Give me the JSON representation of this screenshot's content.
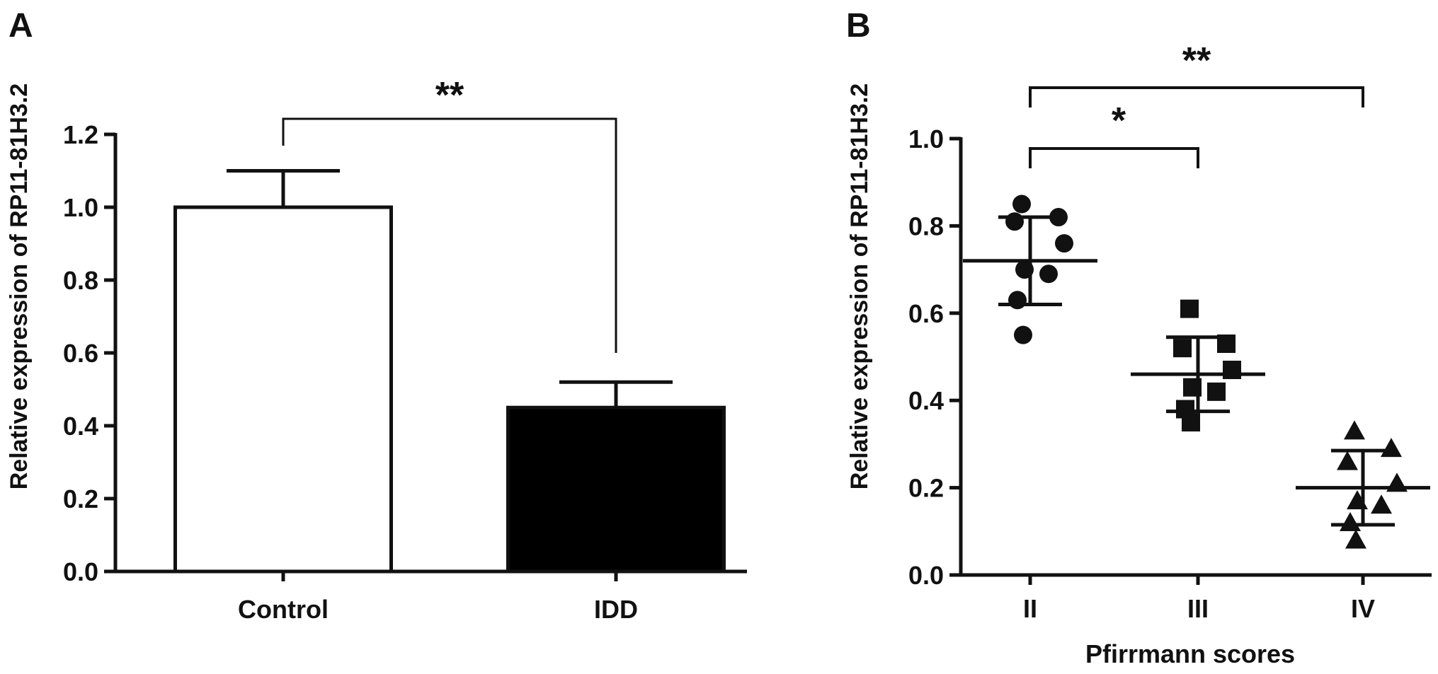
{
  "panels": {
    "a": {
      "label": "A"
    },
    "b": {
      "label": "B"
    }
  },
  "chart_data": [
    {
      "type": "bar",
      "panel": "A",
      "ylabel": "Relative expression of RP11-81H3.2",
      "xlabel": "",
      "ylim": [
        0,
        1.2
      ],
      "yticks": [
        "0.0",
        "0.2",
        "0.4",
        "0.6",
        "0.8",
        "1.0",
        "1.2"
      ],
      "categories": [
        "Control",
        "IDD"
      ],
      "values": [
        1.0,
        0.45
      ],
      "errors": [
        0.1,
        0.07
      ],
      "fills": [
        "#ffffff",
        "#000000"
      ],
      "significance": [
        {
          "from": "Control",
          "to": "IDD",
          "label": "**"
        }
      ],
      "grid": false
    },
    {
      "type": "scatter",
      "panel": "B",
      "ylabel": "Relative expression of RP11-81H3.2",
      "xlabel": "Pfirrmann scores",
      "ylim": [
        0,
        1.0
      ],
      "yticks": [
        "0.0",
        "0.2",
        "0.4",
        "0.6",
        "0.8",
        "1.0"
      ],
      "categories": [
        "II",
        "III",
        "IV"
      ],
      "groups": [
        {
          "category": "II",
          "marker": "circle",
          "points": [
            0.85,
            0.82,
            0.81,
            0.76,
            0.7,
            0.69,
            0.63,
            0.55
          ],
          "mean": 0.72,
          "sd": 0.1
        },
        {
          "category": "III",
          "marker": "square",
          "points": [
            0.61,
            0.53,
            0.52,
            0.47,
            0.43,
            0.42,
            0.38,
            0.35
          ],
          "mean": 0.46,
          "sd": 0.085
        },
        {
          "category": "IV",
          "marker": "triangle",
          "points": [
            0.33,
            0.29,
            0.26,
            0.21,
            0.17,
            0.16,
            0.12,
            0.08
          ],
          "mean": 0.2,
          "sd": 0.085
        }
      ],
      "significance": [
        {
          "from": "II",
          "to": "III",
          "label": "*"
        },
        {
          "from": "II",
          "to": "IV",
          "label": "**"
        }
      ],
      "grid": false
    }
  ]
}
